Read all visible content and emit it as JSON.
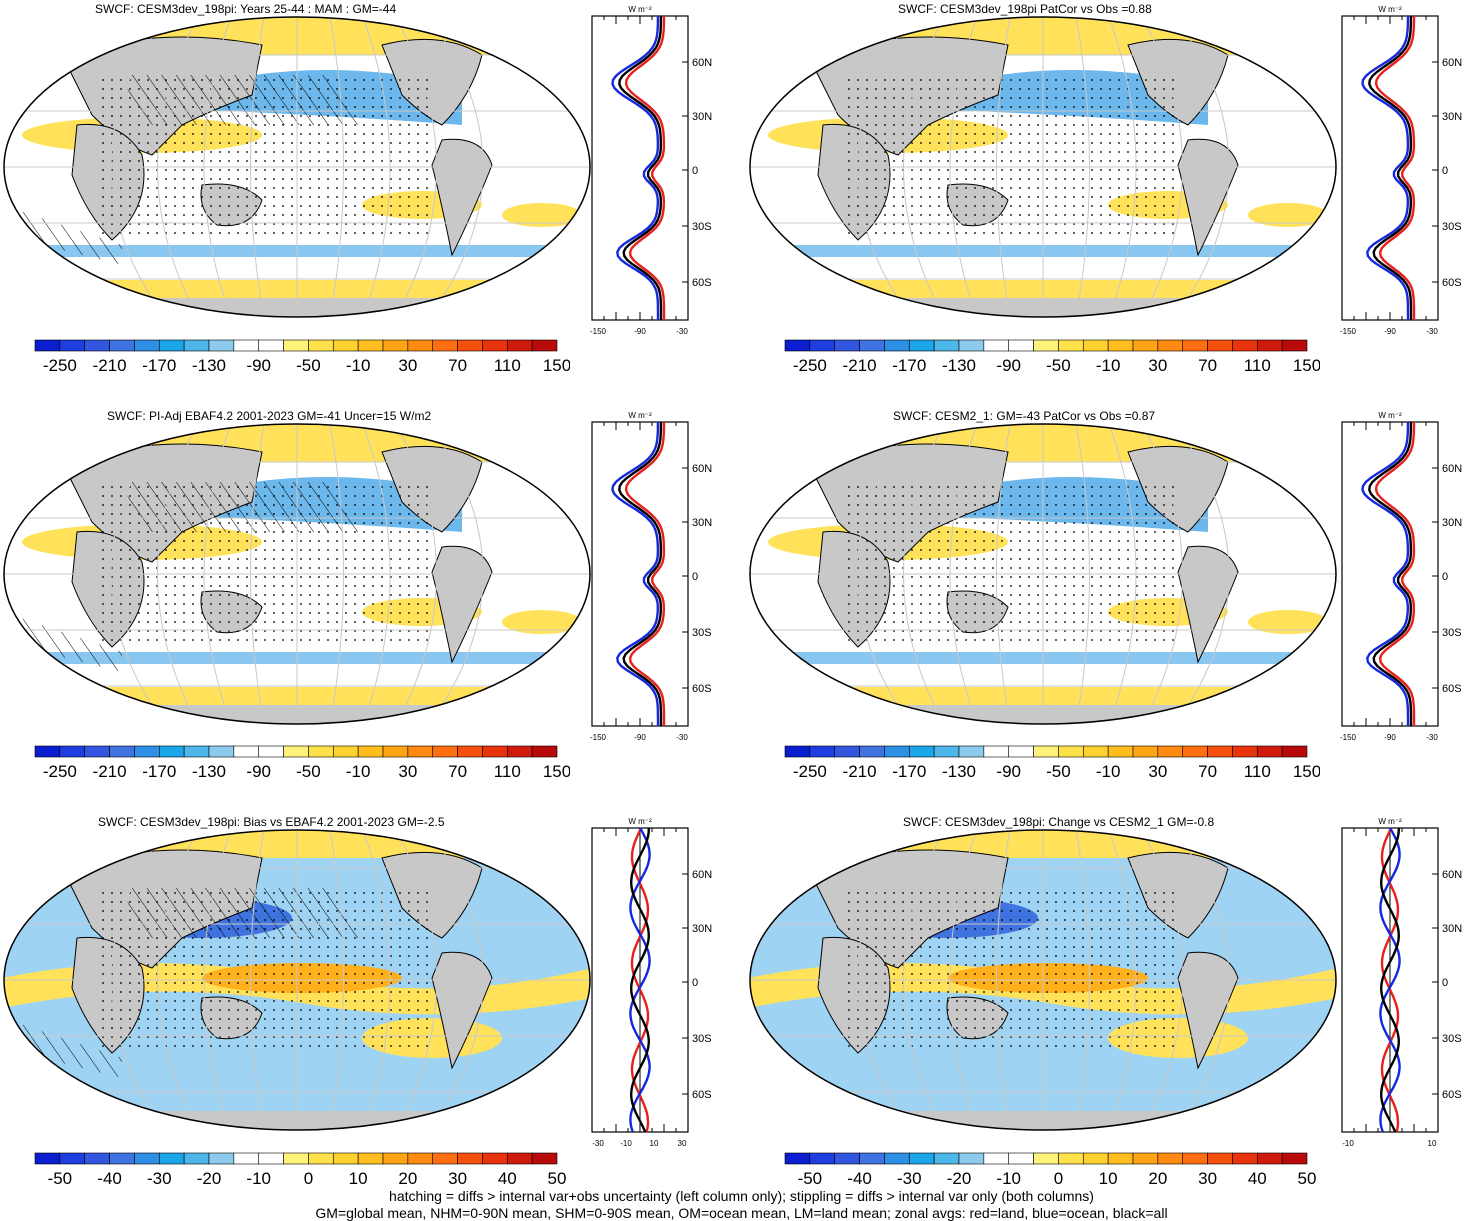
{
  "panels": [
    {
      "title": "SWCF: CESM3dev_198pi: Years 25-44 : MAM : GM=-44",
      "ticks": [
        "-250",
        "-210",
        "-170",
        "-130",
        "-90",
        "-50",
        "-10",
        "30",
        "70",
        "110",
        "150"
      ],
      "zonal_ticks": [
        "-150",
        "-90",
        "-30"
      ],
      "lat_labels": [
        "60N",
        "30N",
        "0",
        "30S",
        "60S"
      ],
      "unit": "W m⁻²"
    },
    {
      "title": "SWCF: CESM3dev_198pi PatCor vs Obs =0.88",
      "ticks": [
        "-250",
        "-210",
        "-170",
        "-130",
        "-90",
        "-50",
        "-10",
        "30",
        "70",
        "110",
        "150"
      ],
      "zonal_ticks": [
        "-150",
        "-90",
        "-30"
      ],
      "lat_labels": [
        "60N",
        "30N",
        "0",
        "30S",
        "60S"
      ],
      "unit": "W m⁻²"
    },
    {
      "title": "SWCF: PI-Adj EBAF4.2 2001-2023 GM=-41 Uncer=15 W/m2",
      "ticks": [
        "-250",
        "-210",
        "-170",
        "-130",
        "-90",
        "-50",
        "-10",
        "30",
        "70",
        "110",
        "150"
      ],
      "zonal_ticks": [
        "-150",
        "-90",
        "-30"
      ],
      "lat_labels": [
        "60N",
        "30N",
        "0",
        "30S",
        "60S"
      ],
      "unit": "W m⁻²"
    },
    {
      "title": "SWCF: CESM2_1: GM=-43 PatCor vs Obs =0.87",
      "ticks": [
        "-250",
        "-210",
        "-170",
        "-130",
        "-90",
        "-50",
        "-10",
        "30",
        "70",
        "110",
        "150"
      ],
      "zonal_ticks": [
        "-150",
        "-90",
        "-30"
      ],
      "lat_labels": [
        "60N",
        "30N",
        "0",
        "30S",
        "60S"
      ],
      "unit": "W m⁻²"
    },
    {
      "title": "SWCF: CESM3dev_198pi: Bias vs EBAF4.2 2001-2023 GM=-2.5",
      "ticks": [
        "-50",
        "-40",
        "-30",
        "-20",
        "-10",
        "0",
        "10",
        "20",
        "30",
        "40",
        "50"
      ],
      "zonal_ticks": [
        "-30",
        "-10",
        "10",
        "30"
      ],
      "lat_labels": [
        "60N",
        "30N",
        "0",
        "30S",
        "60S"
      ],
      "unit": "W m⁻²"
    },
    {
      "title": "SWCF: CESM3dev_198pi: Change vs CESM2_1 GM=-0.8",
      "ticks": [
        "-50",
        "-40",
        "-30",
        "-20",
        "-10",
        "0",
        "10",
        "20",
        "30",
        "40",
        "50"
      ],
      "zonal_ticks": [
        "-10",
        "10"
      ],
      "lat_labels": [
        "60N",
        "30N",
        "0",
        "30S",
        "60S"
      ],
      "unit": "W m⁻²"
    }
  ],
  "colors": {
    "full_scale": [
      "#0a1ed0",
      "#1e3ee0",
      "#3256e0",
      "#3f73e0",
      "#2d8fe6",
      "#1aa6e8",
      "#4fb6ea",
      "#8ccbee",
      "#ffffff",
      "#ffffff",
      "#fff27a",
      "#ffe14a",
      "#ffd12e",
      "#ffbe1e",
      "#ffa414",
      "#ff8a12",
      "#ff6e10",
      "#f5500e",
      "#e8330c",
      "#d01a0c",
      "#b80a0a"
    ],
    "land": "#c8c8c8",
    "ocean_blue": "#6cb8ec",
    "ocean_yellow": "#ffe25a",
    "zonal_land": "#e8201c",
    "zonal_ocean": "#1428e0",
    "zonal_all": "#000000"
  },
  "footer": {
    "line1": "hatching = diffs > internal var+obs uncertainty (left column only); stippling = diffs > internal var only (both columns)",
    "line2": "GM=global mean, NHM=0-90N mean, SHM=0-90S mean, OM=ocean mean, LM=land mean; zonal avgs: red=land, blue=ocean, black=all"
  }
}
